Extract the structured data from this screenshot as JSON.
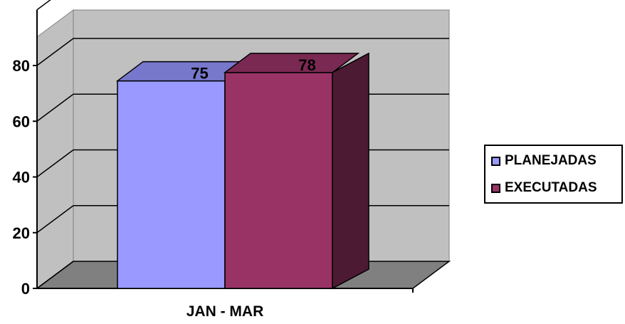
{
  "chart_data": {
    "type": "bar",
    "style": "3d-clustered-column",
    "categories": [
      "JAN - MAR"
    ],
    "series": [
      {
        "name": "PLANEJADAS",
        "values": [
          75
        ],
        "color": "#9999FF",
        "top_color": "#7777CC",
        "side_color": "#5C5CA0"
      },
      {
        "name": "EXECUTADAS",
        "values": [
          78
        ],
        "color": "#993366",
        "top_color": "#7A2952",
        "side_color": "#4D1A33"
      }
    ],
    "data_labels": [
      "75",
      "78"
    ],
    "y_ticks": [
      "0",
      "20",
      "40",
      "60",
      "80"
    ],
    "ylim": [
      0,
      80
    ],
    "grid": true,
    "legend_position": "right",
    "wall_color": "#C0C0C0",
    "floor_color": "#808080"
  }
}
